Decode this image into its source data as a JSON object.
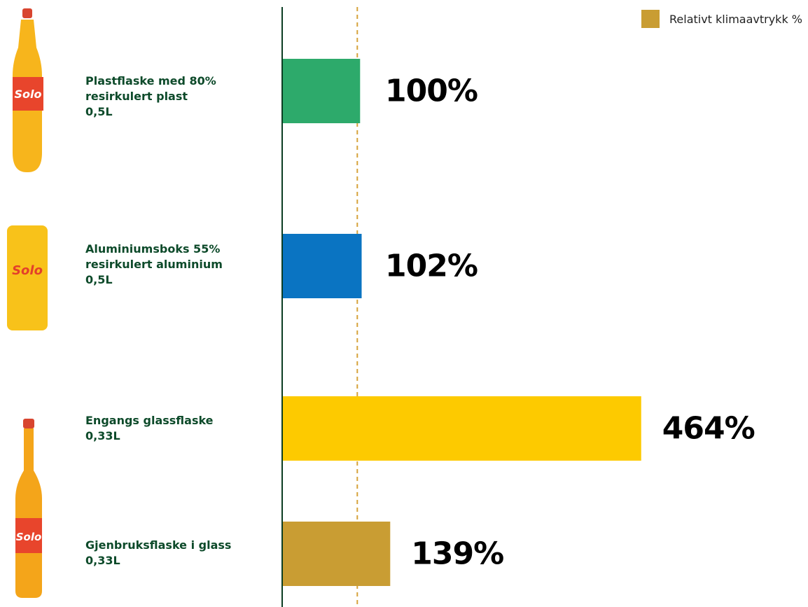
{
  "chart_data": {
    "type": "bar",
    "orientation": "horizontal",
    "categories": [
      "Plastflaske med 80%\nresirkulert plast\n0,5L",
      "Aluminiumsboks 55%\nresirkulert aluminium\n0,5L",
      "Engangs glassflaske\n0,33L",
      "Gjenbruksflaske i glass\n0,33L"
    ],
    "series": [
      {
        "name": "Relativt klimaavtrykk %",
        "color": "#c99d33",
        "values": [
          100,
          102,
          464,
          139
        ],
        "value_labels": [
          "100%",
          "102%",
          "464%",
          "139%"
        ]
      }
    ],
    "bar_colors": [
      "#2daa6b",
      "#0a74c2",
      "#fdca00",
      "#c99d33"
    ],
    "xlim": [
      0,
      680
    ],
    "reference_line": 100
  }
}
